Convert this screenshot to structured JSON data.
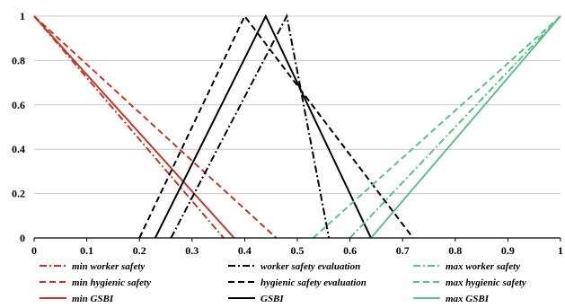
{
  "chart_data": {
    "type": "line",
    "title": "",
    "xlabel": "",
    "ylabel": "",
    "xlim": [
      0,
      1
    ],
    "ylim": [
      0,
      1
    ],
    "x_ticks": [
      "0",
      "0.1",
      "0.2",
      "0.3",
      "0.4",
      "0.5",
      "0.6",
      "0.7",
      "0.8",
      "0.9",
      "1"
    ],
    "y_ticks": [
      "0",
      "0.2",
      "0.4",
      "0.6",
      "0.8",
      "1"
    ],
    "grid": "horizontal",
    "legend_position": "bottom",
    "series": [
      {
        "name": "min worker safety",
        "color": "#c0392b",
        "dash": "dashdot",
        "x": [
          0,
          0.36
        ],
        "y": [
          1,
          0
        ]
      },
      {
        "name": "min hygienic safety",
        "color": "#c0392b",
        "dash": "dash",
        "x": [
          0,
          0.46
        ],
        "y": [
          1,
          0
        ]
      },
      {
        "name": "min GSBI",
        "color": "#c0392b",
        "dash": "solid",
        "x": [
          0,
          0.38
        ],
        "y": [
          1,
          0
        ]
      },
      {
        "name": "worker safety evaluation",
        "color": "#000000",
        "dash": "dashdot",
        "x": [
          0.26,
          0.48,
          0.56
        ],
        "y": [
          0,
          1,
          0
        ]
      },
      {
        "name": "hygienic safety evaluation",
        "color": "#000000",
        "dash": "dash",
        "x": [
          0.2,
          0.4,
          0.72
        ],
        "y": [
          0,
          1,
          0
        ]
      },
      {
        "name": "GSBI",
        "color": "#000000",
        "dash": "solid",
        "x": [
          0.23,
          0.44,
          0.64
        ],
        "y": [
          0,
          1,
          0
        ]
      },
      {
        "name": "max worker safety",
        "color": "#5cc08a",
        "dash": "dashdot",
        "x": [
          0.6,
          1
        ],
        "y": [
          0,
          1
        ]
      },
      {
        "name": "max hygienic safety",
        "color": "#5cc08a",
        "dash": "dash",
        "x": [
          0.53,
          1
        ],
        "y": [
          0,
          1
        ]
      },
      {
        "name": "max GSBI",
        "color": "#5cc08a",
        "dash": "solid",
        "x": [
          0.64,
          1
        ],
        "y": [
          0,
          1
        ]
      }
    ]
  }
}
